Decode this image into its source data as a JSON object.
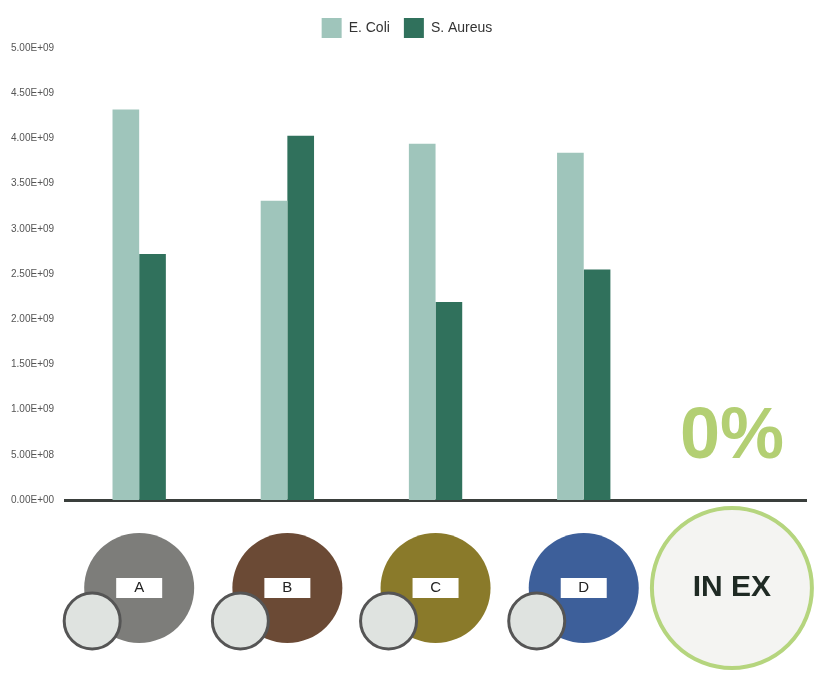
{
  "chart_data": {
    "type": "bar",
    "categories": [
      "A",
      "B",
      "C",
      "D",
      "IN EX"
    ],
    "series": [
      {
        "name": "E. Coli",
        "color": "#9fc5bb",
        "values": [
          4320000000,
          3310000000,
          3940000000,
          3840000000,
          0
        ]
      },
      {
        "name": "S. Aureus",
        "color": "#30715c",
        "values": [
          2720000000,
          4030000000,
          2190000000,
          2550000000,
          0
        ]
      }
    ],
    "ylim": [
      0,
      5000000000
    ],
    "yticks": [
      {
        "value": 0,
        "label": "0.00E+00"
      },
      {
        "value": 500000000,
        "label": "5.00E+08"
      },
      {
        "value": 1000000000,
        "label": "1.00E+09"
      },
      {
        "value": 1500000000,
        "label": "1.50E+09"
      },
      {
        "value": 2000000000,
        "label": "2.00E+09"
      },
      {
        "value": 2500000000,
        "label": "2.50E+09"
      },
      {
        "value": 3000000000,
        "label": "3.00E+09"
      },
      {
        "value": 3500000000,
        "label": "3.50E+09"
      },
      {
        "value": 4000000000,
        "label": "4.00E+09"
      },
      {
        "value": 4500000000,
        "label": "4.50E+09"
      },
      {
        "value": 5000000000,
        "label": "5.00E+09"
      }
    ],
    "grid": false,
    "legend": "top",
    "annotation": "0%"
  }
}
